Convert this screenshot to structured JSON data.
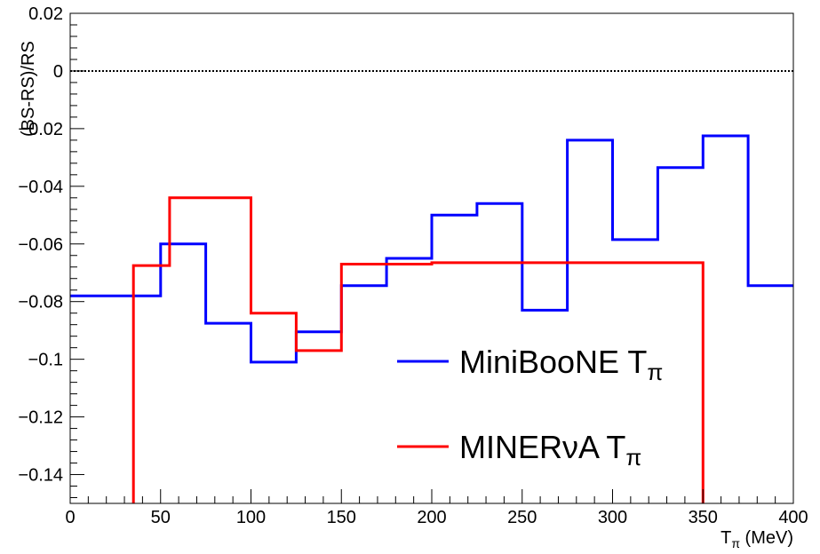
{
  "chart_data": {
    "type": "line",
    "style": "step-histogram",
    "xlabel": "T",
    "xlabel_sub": "π",
    "xlabel_unit": " (MeV)",
    "ylabel": "(BS-RS)/RS",
    "xlim": [
      0,
      400
    ],
    "ylim": [
      -0.15,
      0.02
    ],
    "grid": false,
    "reference_line": {
      "y": 0,
      "style": "dotted",
      "color": "#000000"
    },
    "x_ticks": [
      0,
      50,
      100,
      150,
      200,
      250,
      300,
      350,
      400
    ],
    "x_tick_labels": [
      "0",
      "50",
      "100",
      "150",
      "200",
      "250",
      "300",
      "350",
      "400"
    ],
    "y_ticks": [
      0.02,
      0,
      -0.02,
      -0.04,
      -0.06,
      -0.08,
      -0.1,
      -0.12,
      -0.14
    ],
    "y_tick_labels": [
      "0.02",
      "0",
      "−0.02",
      "−0.04",
      "−0.06",
      "−0.08",
      "−0.1",
      "−0.12",
      "−0.14"
    ],
    "legend_position": "lower-right",
    "series": [
      {
        "name": "MiniBooNE T",
        "name_sub": "π",
        "color": "#0000ff",
        "bin_edges": [
          0,
          50,
          75,
          100,
          125,
          150,
          175,
          200,
          225,
          250,
          275,
          300,
          325,
          350,
          375,
          400
        ],
        "values": [
          -0.078,
          -0.06,
          -0.0875,
          -0.101,
          -0.0905,
          -0.0745,
          -0.065,
          -0.05,
          -0.046,
          -0.083,
          -0.024,
          -0.0585,
          -0.0335,
          -0.0225,
          -0.0745
        ]
      },
      {
        "name": "MINERνA T",
        "name_sub": "π",
        "color": "#ff0000",
        "bin_edges": [
          35,
          55,
          100,
          125,
          150,
          200,
          350
        ],
        "values": [
          -0.0675,
          -0.044,
          -0.084,
          -0.097,
          -0.067,
          -0.0665
        ],
        "drops_to_axis_min": true
      }
    ]
  }
}
